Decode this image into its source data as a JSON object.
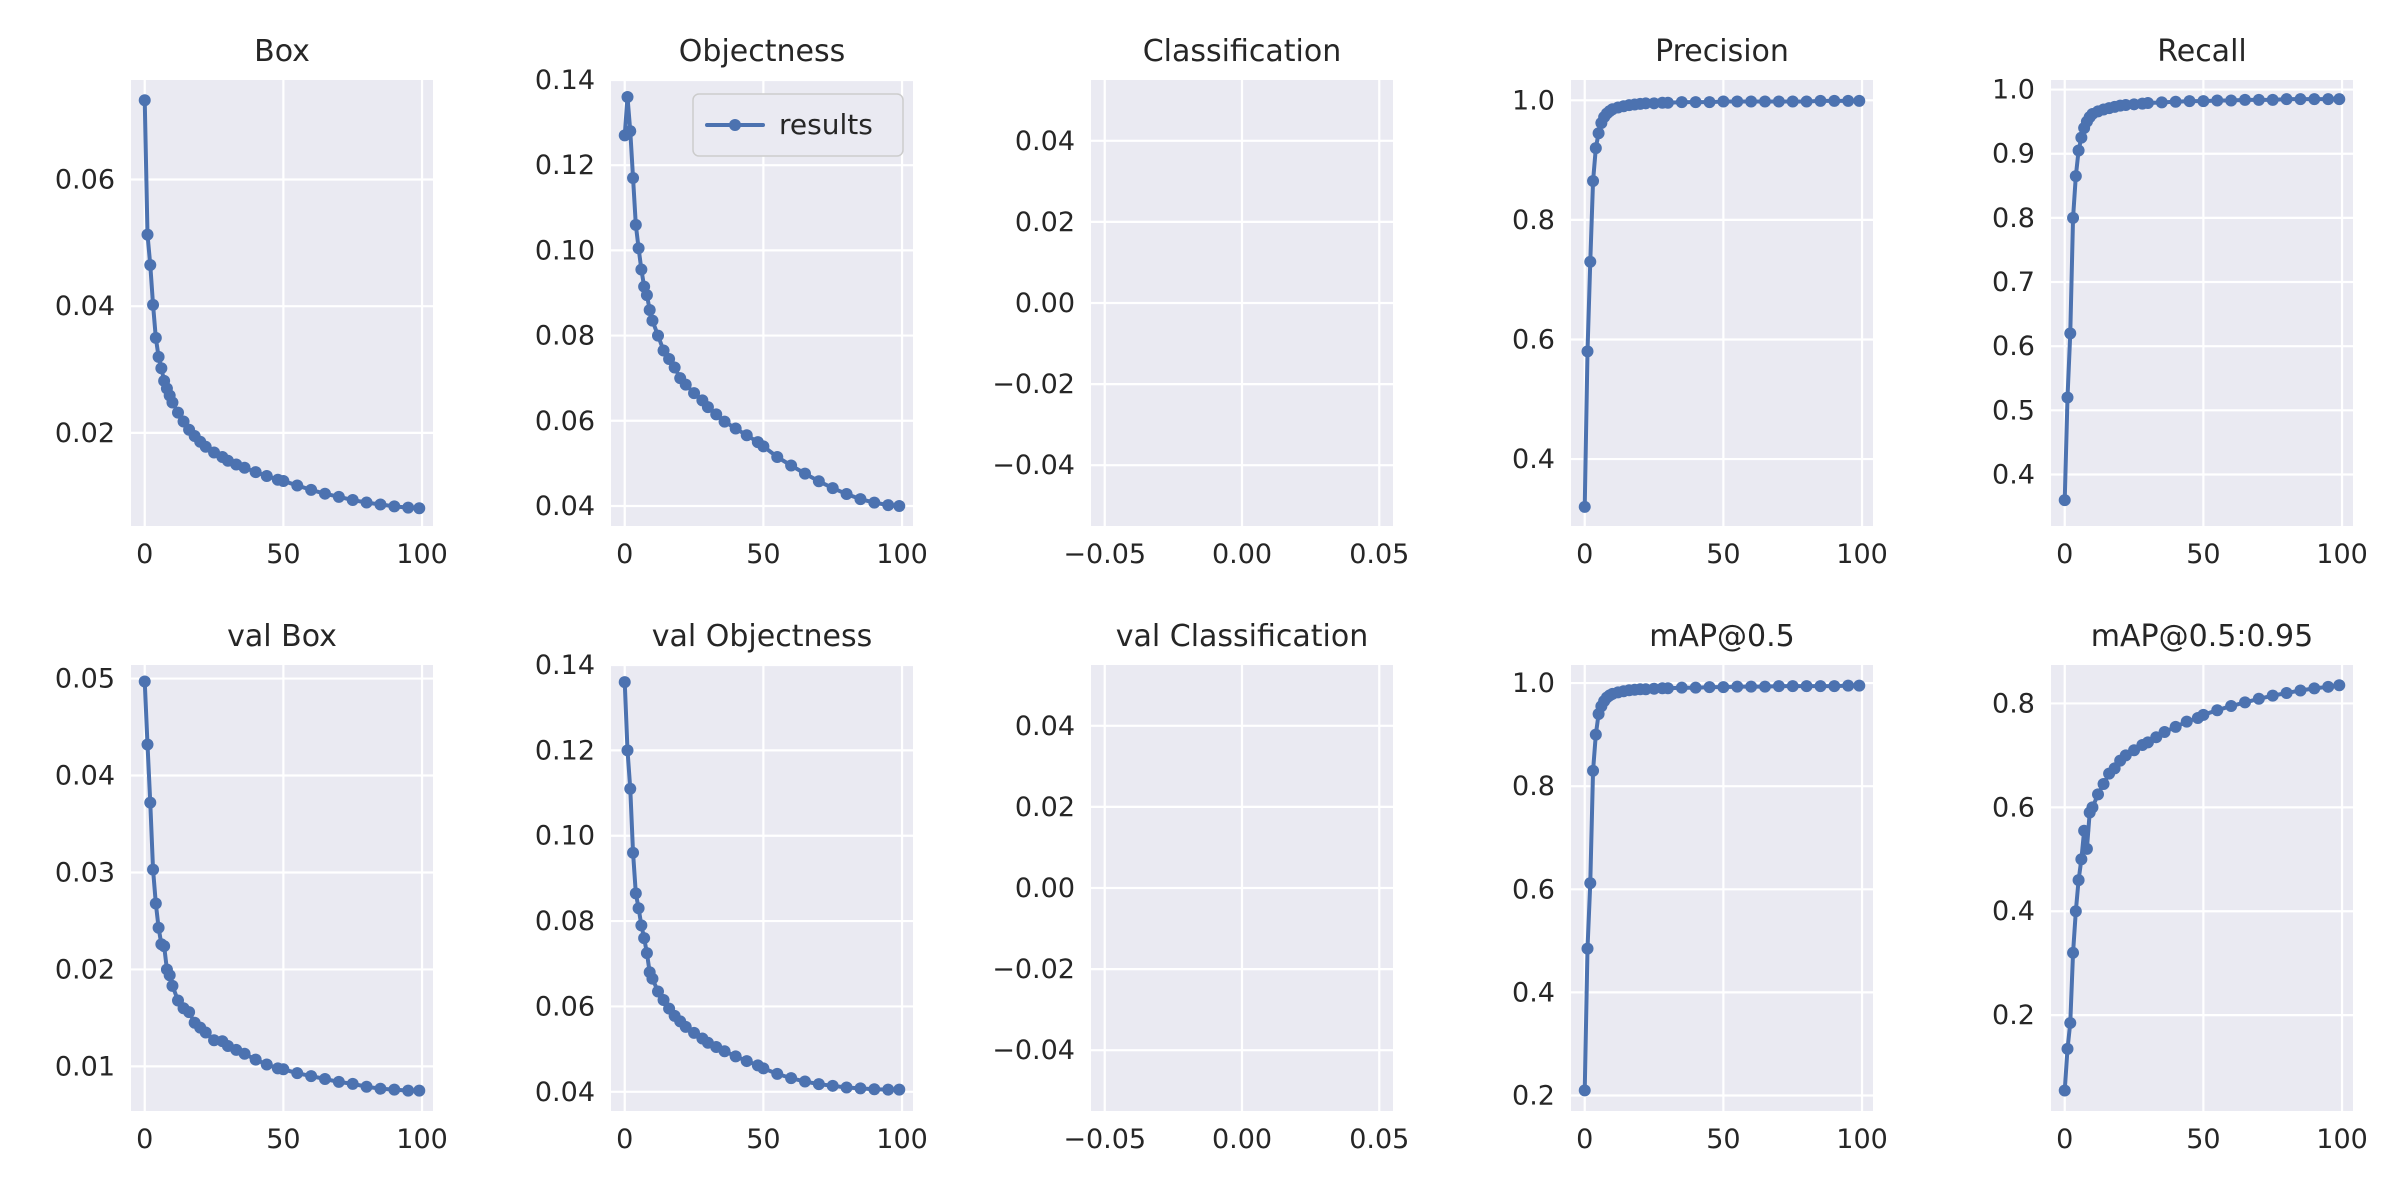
{
  "style": {
    "plot_bg": "#eaeaf2",
    "grid": "#ffffff",
    "line": "#4c72b0",
    "text": "#262626"
  },
  "chart_data": [
    {
      "type": "line",
      "title": "Box",
      "xlabel": "",
      "ylabel": "",
      "xlim": [
        -4.95,
        103.95
      ],
      "ylim": [
        0.0053,
        0.0757
      ],
      "xticks": [
        0,
        50,
        100
      ],
      "xtick_labels": [
        "0",
        "50",
        "100"
      ],
      "yticks": [
        0.02,
        0.04,
        0.06
      ],
      "ytick_labels": [
        "0.02",
        "0.04",
        "0.06"
      ],
      "grid": true,
      "legend": null,
      "series": [
        {
          "x": [
            0,
            1,
            2,
            3,
            4,
            5,
            6,
            7,
            8,
            9,
            10,
            12,
            14,
            16,
            18,
            20,
            22,
            25,
            28,
            30,
            33,
            36,
            40,
            44,
            48,
            50,
            55,
            60,
            65,
            70,
            75,
            80,
            85,
            90,
            95,
            99
          ],
          "y": [
            0.0725,
            0.0513,
            0.0465,
            0.0402,
            0.035,
            0.032,
            0.0302,
            0.0282,
            0.027,
            0.0259,
            0.0248,
            0.0232,
            0.0218,
            0.0205,
            0.0195,
            0.0186,
            0.0178,
            0.0169,
            0.0162,
            0.0156,
            0.015,
            0.0145,
            0.0138,
            0.0132,
            0.0126,
            0.0124,
            0.0117,
            0.011,
            0.0104,
            0.0099,
            0.0094,
            0.009,
            0.0087,
            0.0084,
            0.0082,
            0.0081
          ]
        }
      ]
    },
    {
      "type": "line",
      "title": "Objectness",
      "xlabel": "",
      "ylabel": "",
      "xlim": [
        -4.95,
        103.95
      ],
      "ylim": [
        0.0353,
        0.14
      ],
      "xticks": [
        0,
        50,
        100
      ],
      "xtick_labels": [
        "0",
        "50",
        "100"
      ],
      "yticks": [
        0.04,
        0.06,
        0.08,
        0.1,
        0.12,
        0.14
      ],
      "ytick_labels": [
        "0.04",
        "0.06",
        "0.08",
        "0.10",
        "0.12",
        "0.14"
      ],
      "grid": true,
      "legend": {
        "label": "results",
        "loc": "upper right"
      },
      "series": [
        {
          "name": "results",
          "x": [
            0,
            1,
            2,
            3,
            4,
            5,
            6,
            7,
            8,
            9,
            10,
            12,
            14,
            16,
            18,
            20,
            22,
            25,
            28,
            30,
            33,
            36,
            40,
            44,
            48,
            50,
            55,
            60,
            65,
            70,
            75,
            80,
            85,
            90,
            95,
            99
          ],
          "y": [
            0.127,
            0.136,
            0.128,
            0.117,
            0.106,
            0.1005,
            0.0955,
            0.0915,
            0.0895,
            0.086,
            0.0835,
            0.08,
            0.0765,
            0.0745,
            0.0725,
            0.07,
            0.0685,
            0.0665,
            0.0648,
            0.0632,
            0.0615,
            0.0598,
            0.0582,
            0.0566,
            0.055,
            0.054,
            0.0515,
            0.0495,
            0.0476,
            0.0458,
            0.0442,
            0.0428,
            0.0416,
            0.0408,
            0.0402,
            0.04
          ]
        }
      ]
    },
    {
      "type": "line",
      "title": "Classification",
      "xlabel": "",
      "ylabel": "",
      "xlim": [
        -0.055,
        0.055
      ],
      "ylim": [
        -0.055,
        0.055
      ],
      "xticks": [
        -0.05,
        0.0,
        0.05
      ],
      "xtick_labels": [
        "−0.05",
        "0.00",
        "0.05"
      ],
      "yticks": [
        -0.04,
        -0.02,
        0.0,
        0.02,
        0.04
      ],
      "ytick_labels": [
        "−0.04",
        "−0.02",
        "0.00",
        "0.02",
        "0.04"
      ],
      "grid": true,
      "legend": null,
      "series": []
    },
    {
      "type": "line",
      "title": "Precision",
      "xlabel": "",
      "ylabel": "",
      "xlim": [
        -4.95,
        103.95
      ],
      "ylim": [
        0.288,
        1.034
      ],
      "xticks": [
        0,
        50,
        100
      ],
      "xtick_labels": [
        "0",
        "50",
        "100"
      ],
      "yticks": [
        0.4,
        0.6,
        0.8,
        1.0
      ],
      "ytick_labels": [
        "0.4",
        "0.6",
        "0.8",
        "1.0"
      ],
      "grid": true,
      "legend": null,
      "series": [
        {
          "x": [
            0,
            1,
            2,
            3,
            4,
            5,
            6,
            7,
            8,
            9,
            10,
            12,
            14,
            16,
            18,
            20,
            22,
            25,
            28,
            30,
            35,
            40,
            45,
            50,
            55,
            60,
            65,
            70,
            75,
            80,
            85,
            90,
            95,
            99
          ],
          "y": [
            0.32,
            0.58,
            0.73,
            0.865,
            0.92,
            0.945,
            0.962,
            0.972,
            0.978,
            0.982,
            0.985,
            0.988,
            0.99,
            0.992,
            0.993,
            0.994,
            0.995,
            0.995,
            0.996,
            0.996,
            0.997,
            0.997,
            0.997,
            0.998,
            0.998,
            0.998,
            0.998,
            0.998,
            0.998,
            0.998,
            0.999,
            0.999,
            0.999,
            0.999
          ]
        }
      ]
    },
    {
      "type": "line",
      "title": "Recall",
      "xlabel": "",
      "ylabel": "",
      "xlim": [
        -4.95,
        103.95
      ],
      "ylim": [
        0.3197,
        1.0149
      ],
      "xticks": [
        0,
        50,
        100
      ],
      "xtick_labels": [
        "0",
        "50",
        "100"
      ],
      "yticks": [
        0.4,
        0.5,
        0.6,
        0.7,
        0.8,
        0.9,
        1.0
      ],
      "ytick_labels": [
        "0.4",
        "0.5",
        "0.6",
        "0.7",
        "0.8",
        "0.9",
        "1.0"
      ],
      "grid": true,
      "legend": null,
      "series": [
        {
          "x": [
            0,
            1,
            2,
            3,
            4,
            5,
            6,
            7,
            8,
            9,
            10,
            12,
            14,
            16,
            18,
            20,
            22,
            25,
            28,
            30,
            35,
            40,
            45,
            50,
            55,
            60,
            65,
            70,
            75,
            80,
            85,
            90,
            95,
            99
          ],
          "y": [
            0.36,
            0.52,
            0.62,
            0.8,
            0.865,
            0.905,
            0.925,
            0.94,
            0.95,
            0.957,
            0.962,
            0.966,
            0.969,
            0.971,
            0.973,
            0.975,
            0.976,
            0.977,
            0.978,
            0.979,
            0.98,
            0.981,
            0.982,
            0.982,
            0.983,
            0.983,
            0.984,
            0.984,
            0.984,
            0.985,
            0.985,
            0.985,
            0.985,
            0.985
          ]
        }
      ]
    },
    {
      "type": "line",
      "title": "val Box",
      "xlabel": "",
      "ylabel": "",
      "xlim": [
        -4.95,
        103.95
      ],
      "ylim": [
        0.0054,
        0.0514
      ],
      "xticks": [
        0,
        50,
        100
      ],
      "xtick_labels": [
        "0",
        "50",
        "100"
      ],
      "yticks": [
        0.01,
        0.02,
        0.03,
        0.04,
        0.05
      ],
      "ytick_labels": [
        "0.01",
        "0.02",
        "0.03",
        "0.04",
        "0.05"
      ],
      "grid": true,
      "legend": null,
      "series": [
        {
          "x": [
            0,
            1,
            2,
            3,
            4,
            5,
            6,
            7,
            8,
            9,
            10,
            12,
            14,
            16,
            18,
            20,
            22,
            25,
            28,
            30,
            33,
            36,
            40,
            44,
            48,
            50,
            55,
            60,
            65,
            70,
            75,
            80,
            85,
            90,
            95,
            99
          ],
          "y": [
            0.0497,
            0.0432,
            0.0372,
            0.0303,
            0.0268,
            0.0243,
            0.0226,
            0.0224,
            0.02,
            0.0194,
            0.0183,
            0.0168,
            0.016,
            0.0156,
            0.0145,
            0.014,
            0.0135,
            0.0127,
            0.0126,
            0.0121,
            0.0117,
            0.0113,
            0.0107,
            0.0102,
            0.0098,
            0.0097,
            0.0093,
            0.009,
            0.0087,
            0.0084,
            0.0082,
            0.0079,
            0.0077,
            0.0076,
            0.0075,
            0.0075
          ]
        }
      ]
    },
    {
      "type": "line",
      "title": "val Objectness",
      "xlabel": "",
      "ylabel": "",
      "xlim": [
        -4.95,
        103.95
      ],
      "ylim": [
        0.0355,
        0.14
      ],
      "xticks": [
        0,
        50,
        100
      ],
      "xtick_labels": [
        "0",
        "50",
        "100"
      ],
      "yticks": [
        0.04,
        0.06,
        0.08,
        0.1,
        0.12,
        0.14
      ],
      "ytick_labels": [
        "0.04",
        "0.06",
        "0.08",
        "0.10",
        "0.12",
        "0.14"
      ],
      "grid": true,
      "legend": null,
      "series": [
        {
          "x": [
            0,
            1,
            2,
            3,
            4,
            5,
            6,
            7,
            8,
            9,
            10,
            12,
            14,
            16,
            18,
            20,
            22,
            25,
            28,
            30,
            33,
            36,
            40,
            44,
            48,
            50,
            55,
            60,
            65,
            70,
            75,
            80,
            85,
            90,
            95,
            99
          ],
          "y": [
            0.136,
            0.12,
            0.111,
            0.096,
            0.0865,
            0.083,
            0.079,
            0.076,
            0.0725,
            0.068,
            0.0665,
            0.0635,
            0.0615,
            0.0595,
            0.0578,
            0.0565,
            0.0552,
            0.0538,
            0.0525,
            0.0515,
            0.0505,
            0.0495,
            0.0483,
            0.0472,
            0.0462,
            0.0455,
            0.0442,
            0.0432,
            0.0424,
            0.0418,
            0.0414,
            0.041,
            0.0408,
            0.0406,
            0.0405,
            0.0405
          ]
        }
      ]
    },
    {
      "type": "line",
      "title": "val Classification",
      "xlabel": "",
      "ylabel": "",
      "xlim": [
        -0.055,
        0.055
      ],
      "ylim": [
        -0.055,
        0.055
      ],
      "xticks": [
        -0.05,
        0.0,
        0.05
      ],
      "xtick_labels": [
        "−0.05",
        "0.00",
        "0.05"
      ],
      "yticks": [
        -0.04,
        -0.02,
        0.0,
        0.02,
        0.04
      ],
      "ytick_labels": [
        "−0.04",
        "−0.02",
        "0.00",
        "0.02",
        "0.04"
      ],
      "grid": true,
      "legend": null,
      "series": []
    },
    {
      "type": "line",
      "title": "mAP@0.5",
      "xlabel": "",
      "ylabel": "",
      "xlim": [
        -4.95,
        103.95
      ],
      "ylim": [
        0.17,
        1.035
      ],
      "xticks": [
        0,
        50,
        100
      ],
      "xtick_labels": [
        "0",
        "50",
        "100"
      ],
      "yticks": [
        0.2,
        0.4,
        0.6,
        0.8,
        1.0
      ],
      "ytick_labels": [
        "0.2",
        "0.4",
        "0.6",
        "0.8",
        "1.0"
      ],
      "grid": true,
      "legend": null,
      "series": [
        {
          "x": [
            0,
            1,
            2,
            3,
            4,
            5,
            6,
            7,
            8,
            9,
            10,
            12,
            14,
            16,
            18,
            20,
            22,
            25,
            28,
            30,
            35,
            40,
            45,
            50,
            55,
            60,
            65,
            70,
            75,
            80,
            85,
            90,
            95,
            99
          ],
          "y": [
            0.21,
            0.485,
            0.612,
            0.83,
            0.9,
            0.94,
            0.955,
            0.965,
            0.972,
            0.976,
            0.979,
            0.982,
            0.984,
            0.986,
            0.987,
            0.988,
            0.988,
            0.989,
            0.99,
            0.99,
            0.991,
            0.991,
            0.992,
            0.992,
            0.993,
            0.993,
            0.993,
            0.994,
            0.994,
            0.994,
            0.994,
            0.994,
            0.995,
            0.995
          ]
        }
      ]
    },
    {
      "type": "line",
      "title": "mAP@0.5:0.95",
      "xlabel": "",
      "ylabel": "",
      "xlim": [
        -4.95,
        103.95
      ],
      "ylim": [
        0.0155,
        0.874
      ],
      "xticks": [
        0,
        50,
        100
      ],
      "xtick_labels": [
        "0",
        "50",
        "100"
      ],
      "yticks": [
        0.2,
        0.4,
        0.6,
        0.8
      ],
      "ytick_labels": [
        "0.2",
        "0.4",
        "0.6",
        "0.8"
      ],
      "grid": true,
      "legend": null,
      "series": [
        {
          "x": [
            0,
            1,
            2,
            3,
            4,
            5,
            6,
            7,
            8,
            9,
            10,
            12,
            14,
            16,
            18,
            20,
            22,
            25,
            28,
            30,
            33,
            36,
            40,
            44,
            48,
            50,
            55,
            60,
            65,
            70,
            75,
            80,
            85,
            90,
            95,
            99
          ],
          "y": [
            0.055,
            0.135,
            0.185,
            0.32,
            0.4,
            0.46,
            0.5,
            0.555,
            0.52,
            0.59,
            0.6,
            0.625,
            0.645,
            0.665,
            0.675,
            0.69,
            0.7,
            0.71,
            0.72,
            0.725,
            0.735,
            0.745,
            0.755,
            0.765,
            0.772,
            0.778,
            0.787,
            0.795,
            0.802,
            0.809,
            0.815,
            0.82,
            0.825,
            0.829,
            0.832,
            0.835
          ]
        }
      ]
    }
  ]
}
